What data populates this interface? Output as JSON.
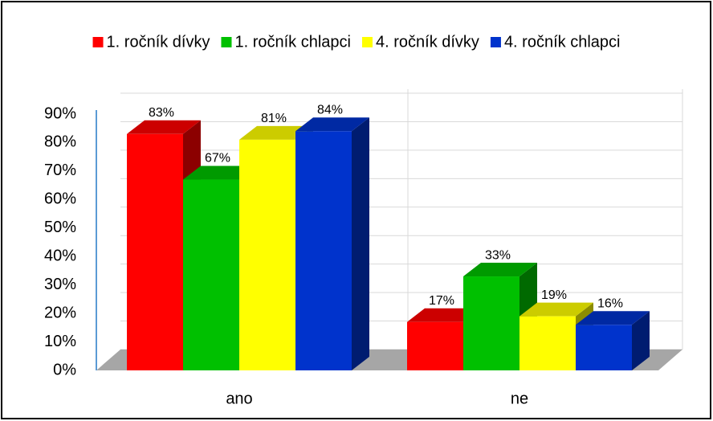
{
  "chart_data": {
    "type": "bar3d",
    "categories": [
      "ano",
      "ne"
    ],
    "series": [
      {
        "name": "1. ročník dívky",
        "color": "#ff0000",
        "values": [
          83,
          17
        ],
        "value_labels": [
          "83%",
          "17%"
        ]
      },
      {
        "name": "1. ročník chlapci",
        "color": "#00c000",
        "values": [
          67,
          33
        ],
        "value_labels": [
          "67%",
          "33%"
        ]
      },
      {
        "name": "4. ročník dívky",
        "color": "#ffff00",
        "values": [
          81,
          19
        ],
        "value_labels": [
          "81%",
          "19%"
        ]
      },
      {
        "name": "4. ročník chlapci",
        "color": "#0033cc",
        "values": [
          84,
          16
        ],
        "value_labels": [
          "84%",
          "16%"
        ]
      }
    ],
    "ylim": [
      0,
      90
    ],
    "yticks": [
      {
        "value": 0,
        "label": "0%"
      },
      {
        "value": 10,
        "label": "10%"
      },
      {
        "value": 20,
        "label": "20%"
      },
      {
        "value": 30,
        "label": "30%"
      },
      {
        "value": 40,
        "label": "40%"
      },
      {
        "value": 50,
        "label": "50%"
      },
      {
        "value": 60,
        "label": "60%"
      },
      {
        "value": 70,
        "label": "70%"
      },
      {
        "value": 80,
        "label": "80%"
      },
      {
        "value": 90,
        "label": "90%"
      }
    ],
    "grid": true,
    "legend": "top"
  }
}
